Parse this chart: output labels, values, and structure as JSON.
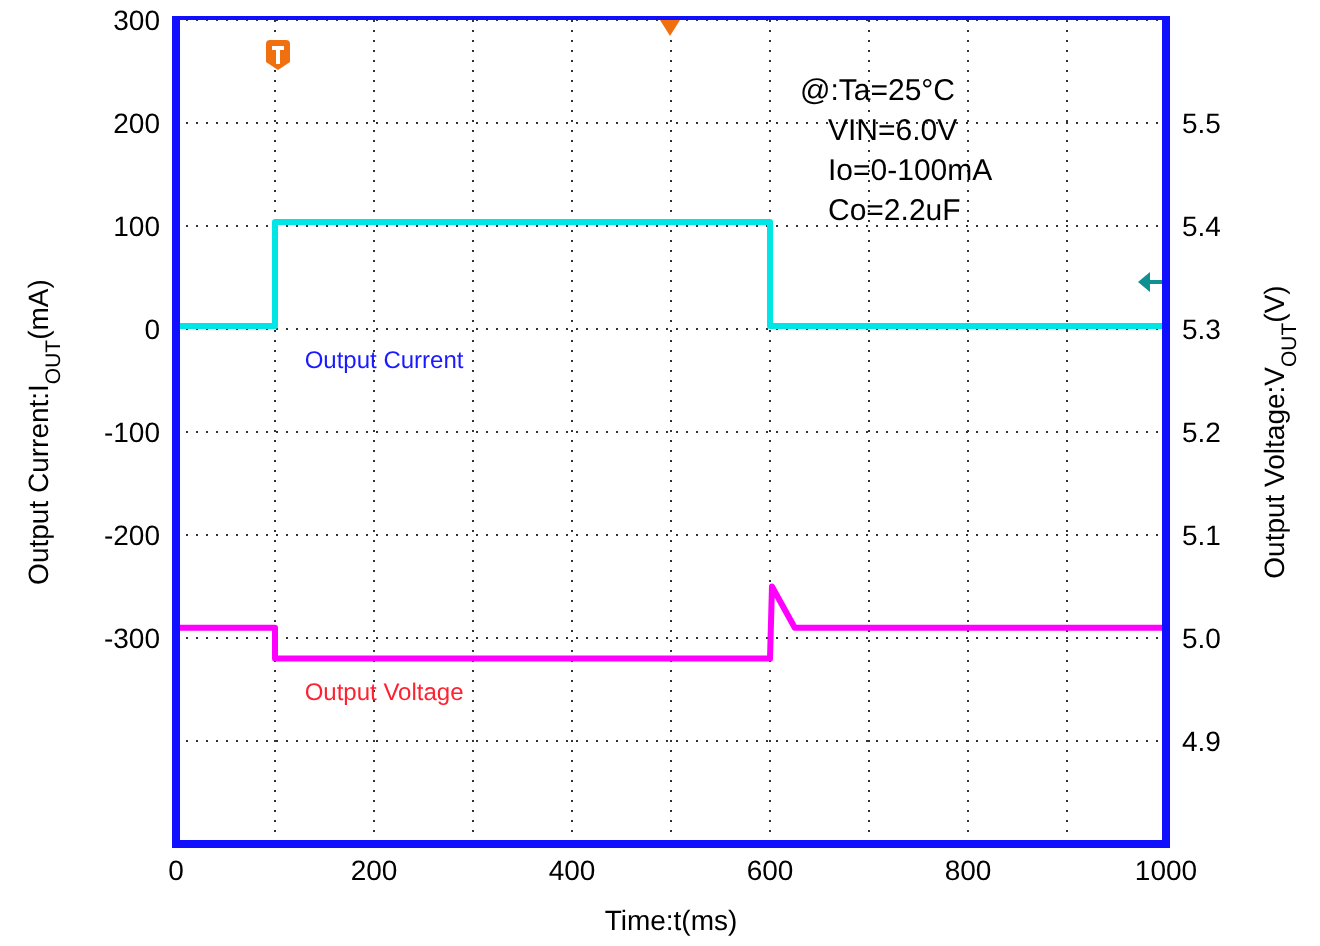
{
  "chart_data": {
    "type": "line",
    "xlabel": "Time:t(ms)",
    "ylabel": "Output Current:I$_{OUT}$(mA)",
    "y2label": "Output Voltage:V$_{OUT}$(V)",
    "xlim": [
      0,
      1000
    ],
    "xticks": [
      0,
      {
        "value": 100,
        "label": null
      },
      200,
      {
        "value": 300,
        "label": null
      },
      400,
      {
        "value": 500,
        "label": null
      },
      600,
      {
        "value": 700,
        "label": null
      },
      800,
      {
        "value": 900,
        "label": null
      },
      1000
    ],
    "ylim": [
      -500,
      300
    ],
    "yticks": [
      {
        "value": -400,
        "label": null
      },
      -300,
      -200,
      -100,
      0,
      100,
      200,
      300
    ],
    "y2lim": [
      4.8,
      5.6
    ],
    "y2ticks": [
      4.9,
      {
        "value": 5,
        "label": "5.0"
      },
      5.1,
      5.2,
      5.3,
      5.4,
      5.5
    ],
    "grid": true,
    "legend": false,
    "marker": "none",
    "line_style": "solid",
    "series": [
      {
        "name": "Output Current",
        "color": "#00e6e6",
        "x": [
          0,
          100,
          100,
          600,
          600,
          1000
        ],
        "values": [
          3,
          3,
          104,
          104,
          3,
          3
        ]
      },
      {
        "name": "Output Voltage",
        "color": "#ff00ff",
        "axis": "y2",
        "x": [
          0,
          100,
          100,
          600,
          600,
          602,
          625,
          1000
        ],
        "values": [
          5.01,
          5.01,
          4.98,
          4.98,
          4.98,
          5.05,
          5.01,
          5.01
        ]
      }
    ],
    "annotations": [
      "@:Ta=25°C",
      "VIN=6.0V",
      "Io=0-100mA",
      "Co=2.2uF"
    ]
  }
}
